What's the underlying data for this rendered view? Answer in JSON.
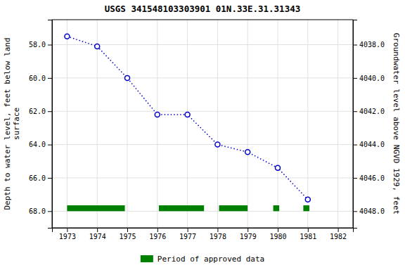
{
  "chart_data": {
    "type": "line",
    "title": "USGS 341548103303901 01N.33E.31.31343",
    "xlim": [
      1972.5,
      1982.5
    ],
    "xticks": [
      1973,
      1974,
      1975,
      1976,
      1977,
      1978,
      1979,
      1980,
      1981,
      1982
    ],
    "ylim": [
      69.0,
      56.5
    ],
    "yticks": [
      {
        "value": 58.0,
        "label": "58.0"
      },
      {
        "value": 60.0,
        "label": "60.0"
      },
      {
        "value": 62.0,
        "label": "62.0"
      },
      {
        "value": 64.0,
        "label": "64.0"
      },
      {
        "value": 66.0,
        "label": "66.0"
      },
      {
        "value": 68.0,
        "label": "68.0"
      }
    ],
    "y2lim": [
      4049.0,
      4036.5
    ],
    "y2ticks": [
      {
        "value": 4048.0,
        "label": "4048.0"
      },
      {
        "value": 4046.0,
        "label": "4046.0"
      },
      {
        "value": 4044.0,
        "label": "4044.0"
      },
      {
        "value": 4042.0,
        "label": "4042.0"
      },
      {
        "value": 4040.0,
        "label": "4040.0"
      },
      {
        "value": 4038.0,
        "label": "4038.0"
      }
    ],
    "ylabel": "Depth to water level, feet below land\nsurface",
    "y2label": "Groundwater level above NGVD 1929, feet",
    "grid": true,
    "legend": "bottom",
    "series": [
      {
        "type": "line",
        "color": "#0000cc",
        "marker": "open-circle",
        "line_style": "dotted",
        "x": [
          1973.0,
          1974.0,
          1975.0,
          1976.0,
          1977.0,
          1978.0,
          1979.0,
          1980.0,
          1981.0
        ],
        "values": [
          57.5,
          58.1,
          60.0,
          62.2,
          62.2,
          64.0,
          64.45,
          65.4,
          67.3
        ]
      },
      {
        "type": "span",
        "name": "Period of approved data",
        "color": "#008000",
        "x_start": [
          1973.0,
          1976.05,
          1978.05,
          1979.85,
          1980.85
        ],
        "x_end": [
          1974.92,
          1977.55,
          1979.0,
          1980.05,
          1981.05
        ],
        "y": 68.0,
        "height": 0.35
      }
    ]
  }
}
